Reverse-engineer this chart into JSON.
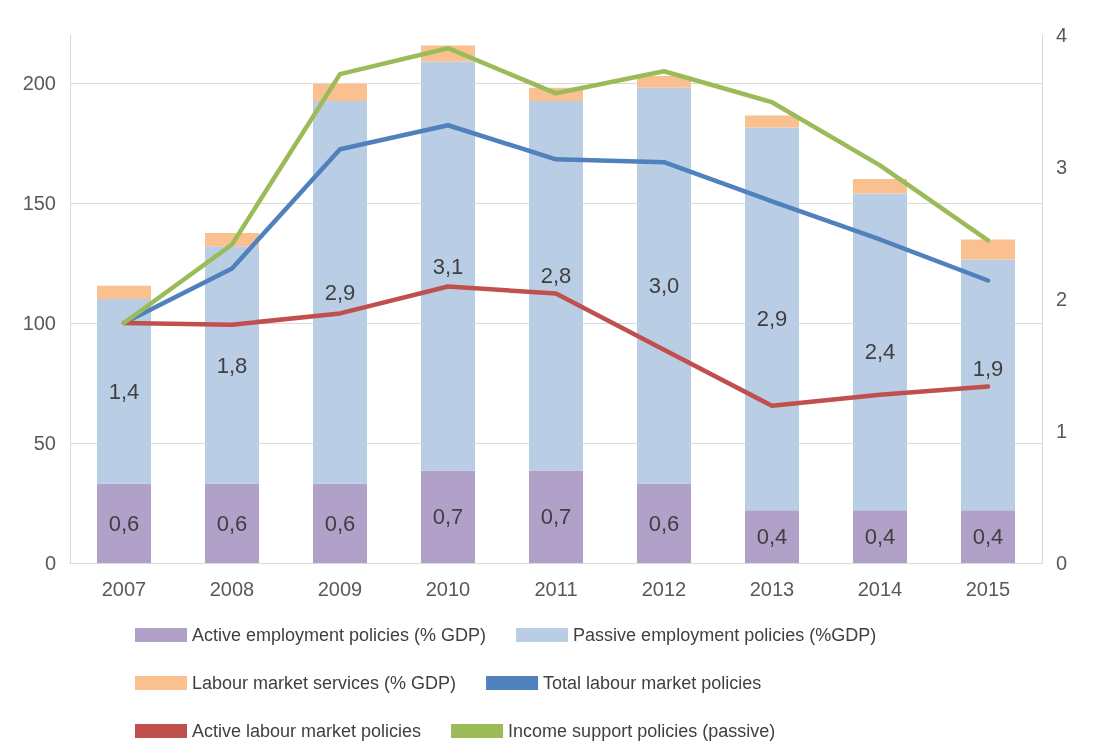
{
  "chart_data": {
    "type": "bar",
    "stacked": true,
    "categories": [
      "2007",
      "2008",
      "2009",
      "2010",
      "2011",
      "2012",
      "2013",
      "2014",
      "2015"
    ],
    "series": [
      {
        "name": "Active employment policies (% GDP)",
        "color": "#b1a0c7",
        "axis": "y2",
        "values": [
          0.6,
          0.6,
          0.6,
          0.7,
          0.7,
          0.6,
          0.4,
          0.4,
          0.4
        ],
        "value_labels": [
          "0,6",
          "0,6",
          "0,6",
          "0,7",
          "0,7",
          "0,6",
          "0,4",
          "0,4",
          "0,4"
        ]
      },
      {
        "name": "Passive employment policies (%GDP)",
        "color": "#b9cde5",
        "axis": "y2",
        "values": [
          1.4,
          1.8,
          2.9,
          3.1,
          2.8,
          3.0,
          2.9,
          2.4,
          1.9
        ],
        "value_labels": [
          "1,4",
          "1,8",
          "2,9",
          "3,1",
          "2,8",
          "3,0",
          "2,9",
          "2,4",
          "1,9"
        ]
      },
      {
        "name": "Labour market services (% GDP)",
        "color": "#fac08f",
        "axis": "y2",
        "values": [
          0.1,
          0.1,
          0.13,
          0.12,
          0.1,
          0.09,
          0.09,
          0.11,
          0.15
        ]
      },
      {
        "name": "Total labour market policies",
        "type": "line",
        "color": "#4f81bd",
        "values": [
          100,
          122.7,
          172.4,
          182.4,
          168.2,
          167,
          150.7,
          134.8,
          117.7
        ]
      },
      {
        "name": "Active labour market policies",
        "type": "line",
        "color": "#c0504d",
        "values": [
          100,
          99.3,
          104,
          115.2,
          112.3,
          88.9,
          65.5,
          70.1,
          73.5
        ]
      },
      {
        "name": "Income support policies (passive)",
        "type": "line",
        "color": "#9bbb59",
        "values": [
          100,
          132.7,
          203.7,
          214.5,
          195.7,
          204.9,
          192,
          165.7,
          134.4
        ]
      }
    ],
    "ylim": [
      0,
      220
    ],
    "yticks": [
      0,
      50,
      100,
      150,
      200
    ],
    "y2lim": [
      0,
      4
    ],
    "y2ticks": [
      0,
      1,
      2,
      3,
      4
    ],
    "grid": "y",
    "legend": "bottom",
    "marker": "none",
    "line_style": "solid"
  }
}
